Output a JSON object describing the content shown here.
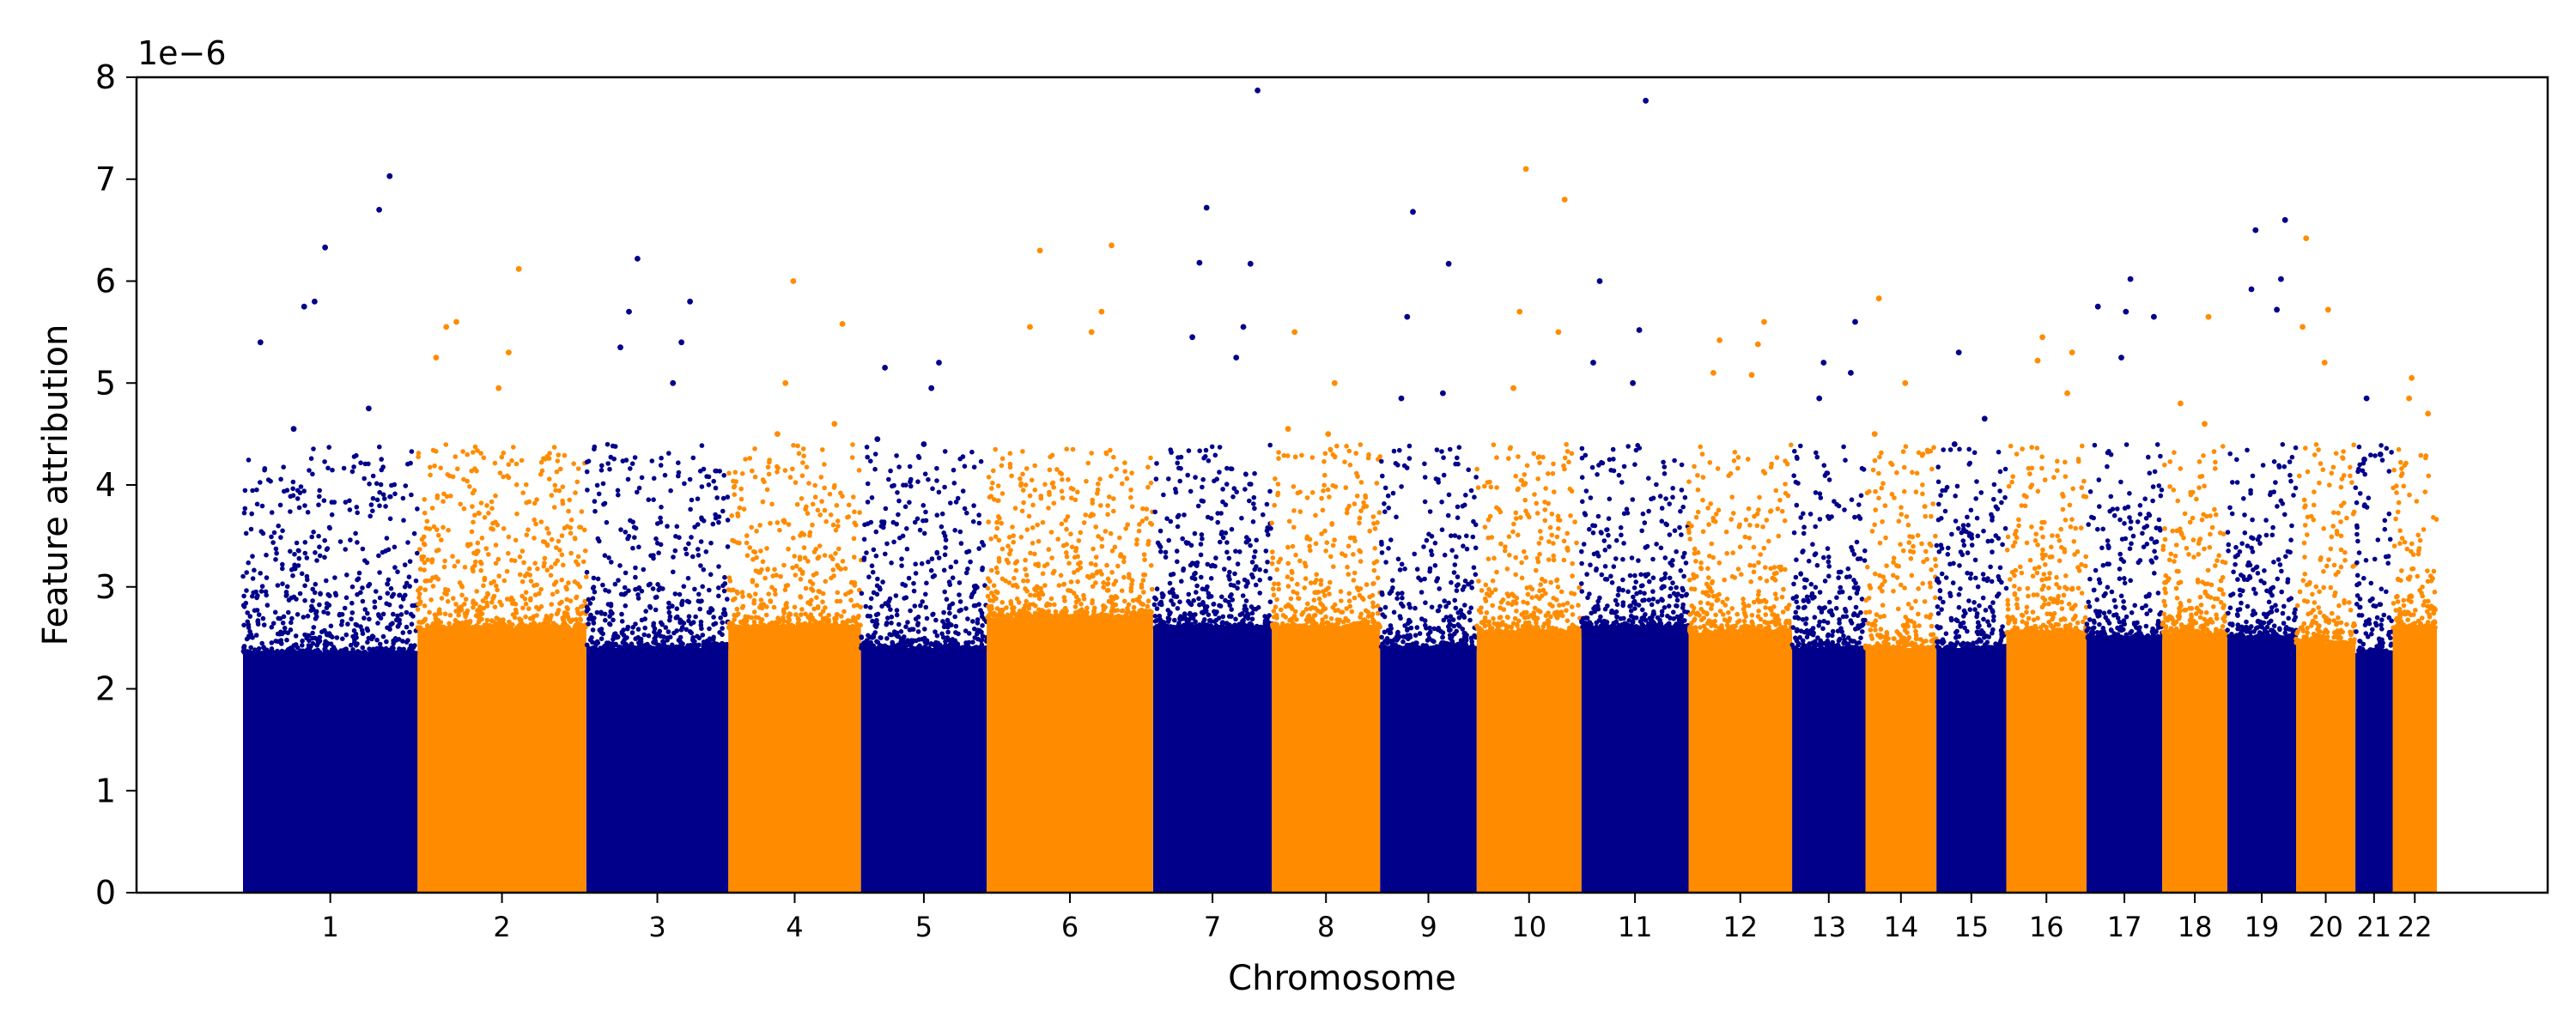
{
  "chart_data": {
    "type": "scatter",
    "subtype": "manhattan",
    "title": "",
    "xlabel": "Chromosome",
    "ylabel": "Feature attribution",
    "y_scale_label": "1e−6",
    "ylim": [
      0,
      8
    ],
    "y_ticks": [
      "0",
      "1",
      "2",
      "3",
      "4",
      "5",
      "6",
      "7",
      "8"
    ],
    "grid": false,
    "legend": "none",
    "colors": {
      "odd": "#00008b",
      "even": "#ff8c00"
    },
    "chromosomes": [
      {
        "label": "1",
        "span": [
          0.0,
          1.5
        ],
        "base_max": 2.35,
        "top_values": [
          5.4,
          6.33,
          7.03,
          5.8,
          6.7,
          5.75,
          4.75,
          4.55
        ]
      },
      {
        "label": "2",
        "span": [
          1.5,
          2.95
        ],
        "base_max": 2.6,
        "top_values": [
          5.6,
          6.12,
          5.55,
          5.3,
          5.25,
          4.95
        ]
      },
      {
        "label": "3",
        "span": [
          2.95,
          4.17
        ],
        "base_max": 2.4,
        "top_values": [
          6.22,
          5.8,
          5.7,
          5.4,
          5.35,
          5.0
        ]
      },
      {
        "label": "4",
        "span": [
          4.17,
          5.31
        ],
        "base_max": 2.6,
        "top_values": [
          6.0,
          5.58,
          5.0,
          4.6,
          4.5
        ]
      },
      {
        "label": "5",
        "span": [
          5.31,
          6.39
        ],
        "base_max": 2.4,
        "top_values": [
          5.2,
          5.15,
          4.95,
          4.45,
          4.4
        ]
      },
      {
        "label": "6",
        "span": [
          6.39,
          7.82
        ],
        "base_max": 2.7,
        "top_values": [
          6.35,
          6.3,
          5.7,
          5.55,
          5.5
        ]
      },
      {
        "label": "7",
        "span": [
          7.82,
          8.84
        ],
        "base_max": 2.6,
        "top_values": [
          7.87,
          6.72,
          6.17,
          6.18,
          5.55,
          5.45,
          5.25
        ]
      },
      {
        "label": "8",
        "span": [
          8.84,
          9.77
        ],
        "base_max": 2.6,
        "top_values": [
          5.5,
          5.0,
          4.55,
          4.5
        ]
      },
      {
        "label": "9",
        "span": [
          9.77,
          10.6
        ],
        "base_max": 2.4,
        "top_values": [
          6.68,
          6.17,
          5.65,
          4.9,
          4.85
        ]
      },
      {
        "label": "10",
        "span": [
          10.6,
          11.5
        ],
        "base_max": 2.55,
        "top_values": [
          7.1,
          6.8,
          5.7,
          5.5,
          4.95
        ]
      },
      {
        "label": "11",
        "span": [
          11.5,
          12.42
        ],
        "base_max": 2.6,
        "top_values": [
          7.77,
          6.0,
          5.52,
          5.2,
          5.0
        ]
      },
      {
        "label": "12",
        "span": [
          12.42,
          13.31
        ],
        "base_max": 2.55,
        "top_values": [
          5.6,
          5.42,
          5.38,
          5.1,
          5.08
        ]
      },
      {
        "label": "13",
        "span": [
          13.31,
          13.94
        ],
        "base_max": 2.4,
        "top_values": [
          5.6,
          5.2,
          5.1,
          4.85
        ]
      },
      {
        "label": "14",
        "span": [
          13.94,
          14.55
        ],
        "base_max": 2.4,
        "top_values": [
          5.83,
          5.0,
          4.5
        ]
      },
      {
        "label": "15",
        "span": [
          14.55,
          15.15
        ],
        "base_max": 2.4,
        "top_values": [
          5.3,
          4.65,
          4.4
        ]
      },
      {
        "label": "16",
        "span": [
          15.15,
          15.84
        ],
        "base_max": 2.55,
        "top_values": [
          5.45,
          5.3,
          5.22,
          4.9
        ]
      },
      {
        "label": "17",
        "span": [
          15.84,
          16.49
        ],
        "base_max": 2.5,
        "top_values": [
          6.02,
          5.75,
          5.7,
          5.65,
          5.25
        ]
      },
      {
        "label": "18",
        "span": [
          16.49,
          17.05
        ],
        "base_max": 2.55,
        "top_values": [
          5.65,
          4.8,
          4.6
        ]
      },
      {
        "label": "19",
        "span": [
          17.05,
          17.64
        ],
        "base_max": 2.5,
        "top_values": [
          6.6,
          6.5,
          6.02,
          5.92,
          5.72
        ]
      },
      {
        "label": "20",
        "span": [
          17.64,
          18.15
        ],
        "base_max": 2.45,
        "top_values": [
          6.42,
          5.72,
          5.55,
          5.2
        ]
      },
      {
        "label": "21",
        "span": [
          18.15,
          18.47
        ],
        "base_max": 2.35,
        "top_values": [
          4.85,
          4.3,
          4.25
        ]
      },
      {
        "label": "22",
        "span": [
          18.47,
          18.85
        ],
        "base_max": 2.6,
        "top_values": [
          5.05,
          4.7,
          4.85
        ]
      }
    ]
  }
}
